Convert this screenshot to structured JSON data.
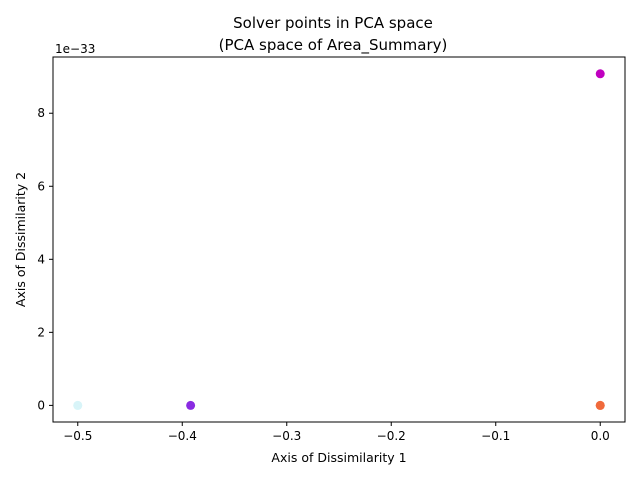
{
  "chart_data": {
    "type": "scatter",
    "title_line1": "Solver points in PCA space",
    "title_line2": "(PCA space of Area_Summary)",
    "xlabel": "Axis of Dissimilarity 1",
    "ylabel": "Axis of Dissimilarity 2",
    "y_offset_label": "1e−33",
    "xlim": [
      -0.5237,
      0.0237
    ],
    "ylim": [
      -0.455,
      9.54
    ],
    "x_ticks": [
      -0.5,
      -0.4,
      -0.3,
      -0.2,
      -0.1,
      0.0
    ],
    "x_tick_labels": [
      "−0.5",
      "−0.4",
      "−0.3",
      "−0.2",
      "−0.1",
      "0.0"
    ],
    "y_ticks": [
      0,
      2,
      4,
      6,
      8
    ],
    "y_tick_labels": [
      "0",
      "2",
      "4",
      "6",
      "8"
    ],
    "grid": false,
    "points": [
      {
        "x": -0.5,
        "y": 0,
        "color": "#e0ffff"
      },
      {
        "x": -0.5,
        "y": 0,
        "color": "#d8f4f8"
      },
      {
        "x": -0.392,
        "y": 0,
        "color": "#8a2be2"
      },
      {
        "x": 0.0,
        "y": 0,
        "color": "#ff7f50"
      },
      {
        "x": 0.0,
        "y": 0,
        "color": "#f06a3c"
      },
      {
        "x": 0.0,
        "y": 9.08,
        "color": "#c000c0"
      }
    ]
  }
}
